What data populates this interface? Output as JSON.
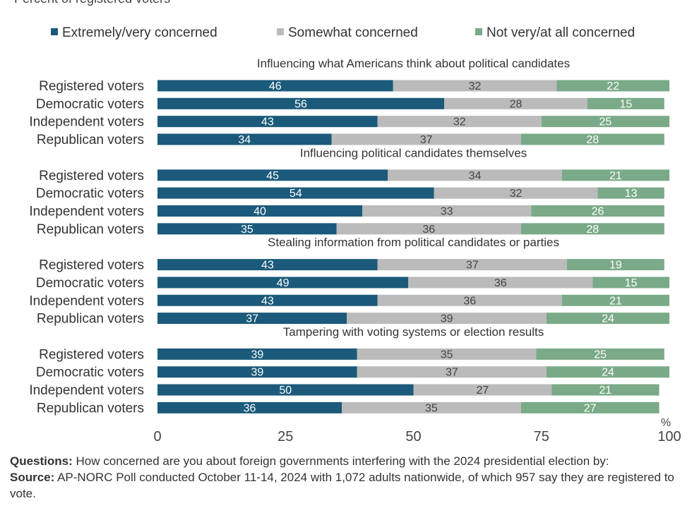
{
  "subtitle": "Percent of registered voters",
  "legend": [
    {
      "label": "Extremely/very concerned",
      "color": "#1b5a7a"
    },
    {
      "label": "Somewhat concerned",
      "color": "#bbbbbb"
    },
    {
      "label": "Not very/at all concerned",
      "color": "#7aaa88"
    }
  ],
  "footer": {
    "questions_label": "Questions:",
    "questions_text": "How concerned are you about foreign governments interfering with the 2024 presidential election by:",
    "source_label": "Source:",
    "source_text": "AP-NORC Poll conducted October 11-14, 2024 with 1,072 adults nationwide, of which 957 say they are registered to vote."
  },
  "chart_data": {
    "type": "bar",
    "orientation": "horizontal",
    "stacked": true,
    "xlim": [
      0,
      100
    ],
    "xticks": [
      0,
      25,
      50,
      75,
      100
    ],
    "unit_label": "%",
    "series_names": [
      "Extremely/very concerned",
      "Somewhat concerned",
      "Not very/at all concerned"
    ],
    "colors": [
      "#1b5a7a",
      "#bbbbbb",
      "#7aaa88"
    ],
    "groups": [
      {
        "title": "Influencing what Americans think about political candidates",
        "rows": [
          {
            "label": "Registered voters",
            "values": [
              46,
              32,
              22
            ]
          },
          {
            "label": "Democratic voters",
            "values": [
              56,
              28,
              15
            ]
          },
          {
            "label": "Independent voters",
            "values": [
              43,
              32,
              25
            ]
          },
          {
            "label": "Republican voters",
            "values": [
              34,
              37,
              28
            ]
          }
        ]
      },
      {
        "title": "Influencing political candidates themselves",
        "rows": [
          {
            "label": "Registered voters",
            "values": [
              45,
              34,
              21
            ]
          },
          {
            "label": "Democratic voters",
            "values": [
              54,
              32,
              13
            ]
          },
          {
            "label": "Independent voters",
            "values": [
              40,
              33,
              26
            ]
          },
          {
            "label": "Republican voters",
            "values": [
              35,
              36,
              28
            ]
          }
        ]
      },
      {
        "title": "Stealing information from political candidates or parties",
        "rows": [
          {
            "label": "Registered voters",
            "values": [
              43,
              37,
              19
            ]
          },
          {
            "label": "Democratic voters",
            "values": [
              49,
              36,
              15
            ]
          },
          {
            "label": "Independent voters",
            "values": [
              43,
              36,
              21
            ]
          },
          {
            "label": "Republican voters",
            "values": [
              37,
              39,
              24
            ]
          }
        ]
      },
      {
        "title": "Tampering with voting systems or election results",
        "rows": [
          {
            "label": "Registered voters",
            "values": [
              39,
              35,
              25
            ]
          },
          {
            "label": "Democratic voters",
            "values": [
              39,
              37,
              24
            ]
          },
          {
            "label": "Independent voters",
            "values": [
              50,
              27,
              21
            ]
          },
          {
            "label": "Republican voters",
            "values": [
              36,
              35,
              27
            ]
          }
        ]
      }
    ]
  }
}
